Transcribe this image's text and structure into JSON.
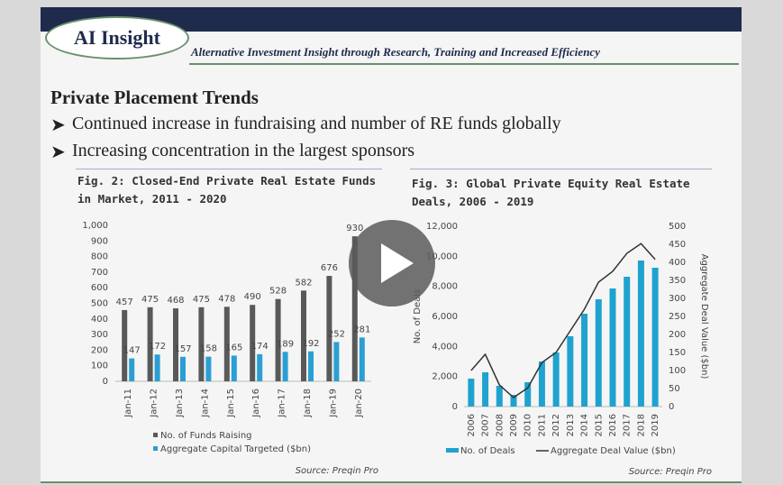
{
  "header": {
    "logo": "AI Insight",
    "tagline": "Alternative Investment Insight through Research, Training and Increased Efficiency"
  },
  "slide": {
    "title": "Private Placement Trends",
    "bullets": [
      "Continued increase in fundraising and number of RE funds globally",
      "Increasing concentration in the largest sponsors"
    ]
  },
  "chart_data": [
    {
      "type": "bar",
      "title": "Fig. 2: Closed-End Private Real Estate Funds in Market, 2011 - 2020",
      "source": "Source: Preqin Pro",
      "categories": [
        "Jan-11",
        "Jan-12",
        "Jan-13",
        "Jan-14",
        "Jan-15",
        "Jan-16",
        "Jan-17",
        "Jan-18",
        "Jan-19",
        "Jan-20"
      ],
      "series": [
        {
          "name": "No. of Funds Raising",
          "color": "#595959",
          "type": "bar",
          "values": [
            457,
            475,
            468,
            475,
            478,
            490,
            528,
            582,
            676,
            930
          ]
        },
        {
          "name": "Aggregate Capital Targeted ($bn)",
          "color": "#2b9fd3",
          "type": "bar",
          "values": [
            147,
            172,
            157,
            158,
            165,
            174,
            189,
            192,
            252,
            281
          ]
        }
      ],
      "ylim": [
        0,
        1000
      ],
      "yticks": [
        0,
        100,
        200,
        300,
        400,
        500,
        600,
        700,
        800,
        900,
        {
          "value": 1000,
          "label": "1,000"
        }
      ],
      "data_labels": true
    },
    {
      "type": "bar",
      "title": "Fig. 3: Global Private Equity Real Estate Deals, 2006 - 2019",
      "source": "Source: Preqin Pro",
      "y_label": "No. of Deals",
      "y2_label": "Aggregate Deal Value ($bn)",
      "categories": [
        "2006",
        "2007",
        "2008",
        "2009",
        "2010",
        "2011",
        "2012",
        "2013",
        "2014",
        "2015",
        "2016",
        "2017",
        "2018",
        "2019"
      ],
      "series": [
        {
          "name": "No. of Deals",
          "color": "#1fa2cf",
          "type": "bar",
          "values": [
            1860,
            2280,
            1380,
            780,
            1620,
            3000,
            3600,
            4680,
            6180,
            7140,
            7860,
            8640,
            9720,
            9240
          ]
        },
        {
          "name": "Aggregate Deal Value ($bn)",
          "color": "#333333",
          "type": "line",
          "axis": "y2",
          "values": [
            100,
            145,
            60,
            25,
            52,
            122,
            150,
            210,
            270,
            345,
            375,
            425,
            452,
            408
          ]
        }
      ],
      "ylim": [
        0,
        12000
      ],
      "yticks": [
        0,
        {
          "value": 2000,
          "label": "2,000"
        },
        {
          "value": 4000,
          "label": "4,000"
        },
        {
          "value": 6000,
          "label": "6,000"
        },
        {
          "value": 8000,
          "label": "8,000"
        },
        {
          "value": 10000,
          "label": "10,000"
        },
        {
          "value": 12000,
          "label": "12,000"
        }
      ],
      "y2lim": [
        0,
        500
      ],
      "y2ticks": [
        0,
        50,
        100,
        150,
        200,
        250,
        300,
        350,
        400,
        450,
        500
      ],
      "data_labels": false
    }
  ]
}
